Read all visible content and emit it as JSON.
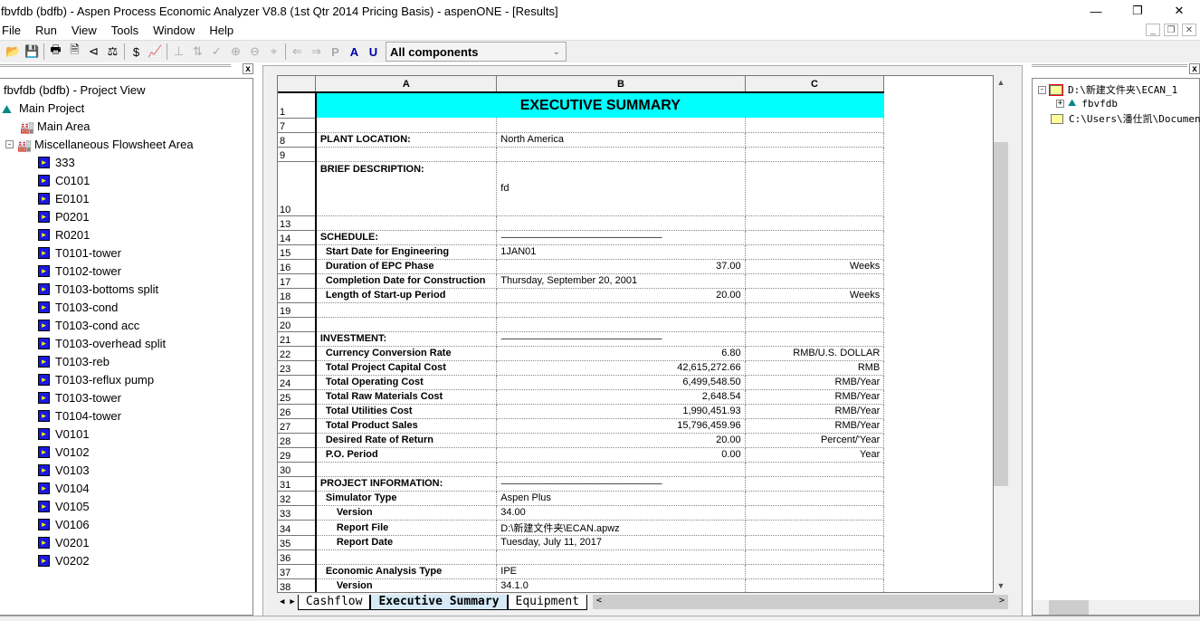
{
  "window": {
    "title": "fbvfdb (bdfb) - Aspen Process Economic Analyzer V8.8 (1st Qtr 2014 Pricing Basis) - aspenONE - [Results]"
  },
  "menu": [
    "File",
    "Run",
    "View",
    "Tools",
    "Window",
    "Help"
  ],
  "toolbar": {
    "component_filter": "All components"
  },
  "project_view": {
    "title": "fbvfdb (bdfb) - Project View",
    "main_project": "Main Project",
    "main_area": "Main Area",
    "misc_area": "Miscellaneous Flowsheet Area",
    "items": [
      "333",
      "C0101",
      "E0101",
      "P0201",
      "R0201",
      "T0101-tower",
      "T0102-tower",
      "T0103-bottoms split",
      "T0103-cond",
      "T0103-cond acc",
      "T0103-overhead split",
      "T0103-reb",
      "T0103-reflux pump",
      "T0103-tower",
      "T0104-tower",
      "V0101",
      "V0102",
      "V0103",
      "V0104",
      "V0105",
      "V0106",
      "V0201",
      "V0202"
    ]
  },
  "sheet": {
    "columns": [
      "A",
      "B",
      "C"
    ],
    "title": "EXECUTIVE SUMMARY",
    "rows": [
      {
        "n": "7",
        "a": "",
        "b": "",
        "c": ""
      },
      {
        "n": "8",
        "a": "PLANT LOCATION:",
        "b": "North America",
        "c": "",
        "lvl": 0
      },
      {
        "n": "9",
        "a": "",
        "b": "",
        "c": ""
      },
      {
        "n": "10",
        "a": "BRIEF DESCRIPTION:",
        "b": "fd",
        "c": "",
        "lvl": 0,
        "tall": true
      },
      {
        "n": "13",
        "a": "",
        "b": "",
        "c": ""
      },
      {
        "n": "14",
        "a": "SCHEDULE:",
        "b": "-----------------------------------------------------------------------------------------",
        "c": "",
        "lvl": 0,
        "dash": true
      },
      {
        "n": "15",
        "a": "Start Date for Engineering",
        "b": "1JAN01",
        "c": "",
        "lvl": 1
      },
      {
        "n": "16",
        "a": "Duration of EPC Phase",
        "b": "37.00",
        "c": "Weeks",
        "lvl": 1,
        "num": true
      },
      {
        "n": "17",
        "a": "Completion Date for Construction",
        "b": "Thursday, September 20, 2001",
        "c": "",
        "lvl": 1
      },
      {
        "n": "18",
        "a": "Length of Start-up Period",
        "b": "20.00",
        "c": "Weeks",
        "lvl": 1,
        "num": true
      },
      {
        "n": "19",
        "a": "",
        "b": "",
        "c": ""
      },
      {
        "n": "20",
        "a": "",
        "b": "",
        "c": ""
      },
      {
        "n": "21",
        "a": "INVESTMENT:",
        "b": "-----------------------------------------------------------------------------------------",
        "c": "",
        "lvl": 0,
        "dash": true
      },
      {
        "n": "22",
        "a": "Currency Conversion Rate",
        "b": "6.80",
        "c": "RMB/U.S. DOLLAR",
        "lvl": 1,
        "num": true
      },
      {
        "n": "23",
        "a": "Total Project Capital Cost",
        "b": "42,615,272.66",
        "c": "RMB",
        "lvl": 1,
        "num": true
      },
      {
        "n": "24",
        "a": "Total Operating Cost",
        "b": "6,499,548.50",
        "c": "RMB/Year",
        "lvl": 1,
        "num": true
      },
      {
        "n": "25",
        "a": "Total Raw Materials Cost",
        "b": "2,648.54",
        "c": "RMB/Year",
        "lvl": 1,
        "num": true
      },
      {
        "n": "26",
        "a": "Total Utilities Cost",
        "b": "1,990,451.93",
        "c": "RMB/Year",
        "lvl": 1,
        "num": true
      },
      {
        "n": "27",
        "a": "Total Product Sales",
        "b": "15,796,459.96",
        "c": "RMB/Year",
        "lvl": 1,
        "num": true
      },
      {
        "n": "28",
        "a": "Desired Rate of Return",
        "b": "20.00",
        "c": "Percent/'Year",
        "lvl": 1,
        "num": true
      },
      {
        "n": "29",
        "a": "P.O. Period",
        "b": "0.00",
        "c": "Year",
        "lvl": 1,
        "num": true
      },
      {
        "n": "30",
        "a": "",
        "b": "",
        "c": ""
      },
      {
        "n": "31",
        "a": "PROJECT INFORMATION:",
        "b": "-----------------------------------------------------------------------------------------",
        "c": "",
        "lvl": 0,
        "dash": true
      },
      {
        "n": "32",
        "a": "Simulator Type",
        "b": "Aspen Plus",
        "c": "",
        "lvl": 1
      },
      {
        "n": "33",
        "a": "Version",
        "b": "34.00",
        "c": "",
        "lvl": 2
      },
      {
        "n": "34",
        "a": "Report File",
        "b": "D:\\新建文件夹\\ECAN.apwz",
        "c": "",
        "lvl": 2
      },
      {
        "n": "35",
        "a": "Report Date",
        "b": "Tuesday, July 11, 2017",
        "c": "",
        "lvl": 2
      },
      {
        "n": "36",
        "a": "",
        "b": "",
        "c": ""
      },
      {
        "n": "37",
        "a": "Economic Analysis Type",
        "b": "IPE",
        "c": "",
        "lvl": 1
      },
      {
        "n": "38",
        "a": "Version",
        "b": "34.1.0",
        "c": "",
        "lvl": 2
      }
    ],
    "tabs": [
      "Cashflow",
      "Executive Summary",
      "Equipment"
    ],
    "active_tab": "Executive Summary",
    "header_color": "#00ffff"
  },
  "file_tree": {
    "items": [
      "D:\\新建文件夹\\ECAN_1",
      "fbvfdb",
      "C:\\Users\\潘仕凯\\Documen"
    ]
  }
}
